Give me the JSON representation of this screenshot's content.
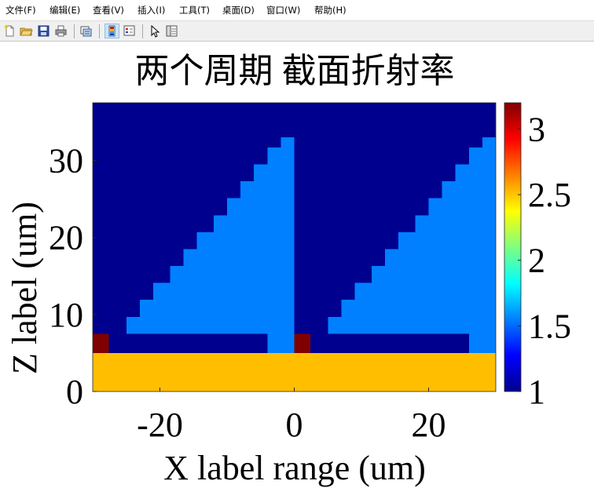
{
  "menu": [
    "文件(F)",
    "编辑(E)",
    "查看(V)",
    "插入(I)",
    "工具(T)",
    "桌面(D)",
    "窗口(W)",
    "帮助(H)"
  ],
  "toolbar_icons": [
    "new-file-icon",
    "open-folder-icon",
    "save-icon",
    "print-icon",
    "print-preview-icon",
    "colorbar-icon",
    "legend-icon",
    "pointer-icon",
    "property-editor-icon"
  ],
  "chart_data": {
    "type": "heatmap",
    "title": "两个周期  截面折射率",
    "xlabel": "X label range (um)",
    "ylabel": "Z label (um)",
    "xlim": [
      -30,
      30
    ],
    "ylim": [
      0,
      37.5
    ],
    "xticks": [
      -20,
      0,
      20
    ],
    "xtick_labels": [
      "-20",
      "0",
      "20"
    ],
    "yticks": [
      0,
      10,
      20,
      30
    ],
    "ytick_labels": [
      "0",
      "10",
      "20",
      "30"
    ],
    "colorbar": {
      "colormap": "jet",
      "clim": [
        1,
        3.2
      ],
      "ticks": [
        1,
        1.5,
        2,
        2.5,
        3
      ],
      "tick_labels": [
        "1",
        "1.5",
        "2",
        "2.5",
        "3"
      ]
    },
    "background_index": 1,
    "regions": [
      {
        "material": "substrate",
        "index": 2.6,
        "color": "#ffbf00",
        "x": [
          -30,
          30
        ],
        "z": [
          0,
          5
        ]
      },
      {
        "material": "high-index block",
        "index": 3.2,
        "color": "#800000",
        "x": [
          -30,
          -27.6
        ],
        "z": [
          5,
          7.5
        ]
      },
      {
        "material": "high-index block",
        "index": 3.2,
        "color": "#800000",
        "x": [
          0,
          2.4
        ],
        "z": [
          5,
          7.5
        ]
      },
      {
        "material": "grating post",
        "index": 1.45,
        "color": "#0080ff",
        "x": [
          -4,
          0
        ],
        "z": [
          5,
          7.5
        ]
      },
      {
        "material": "grating post",
        "index": 1.45,
        "color": "#0080ff",
        "x": [
          26,
          30
        ],
        "z": [
          5,
          7.5
        ]
      }
    ],
    "staircases": [
      {
        "material": "blazed grating",
        "index": 1.45,
        "color": "#0080ff",
        "steps": [
          {
            "z": [
              7.5,
              9.7
            ],
            "x": [
              -25,
              0
            ]
          },
          {
            "z": [
              9.7,
              11.9
            ],
            "x": [
              -23,
              0
            ]
          },
          {
            "z": [
              11.9,
              14.1
            ],
            "x": [
              -21,
              0
            ]
          },
          {
            "z": [
              14.1,
              16.3
            ],
            "x": [
              -18.5,
              0
            ]
          },
          {
            "z": [
              16.3,
              18.5
            ],
            "x": [
              -16.5,
              0
            ]
          },
          {
            "z": [
              18.5,
              20.7
            ],
            "x": [
              -14.5,
              0
            ]
          },
          {
            "z": [
              20.7,
              22.9
            ],
            "x": [
              -12,
              0
            ]
          },
          {
            "z": [
              22.9,
              25.1
            ],
            "x": [
              -10,
              0
            ]
          },
          {
            "z": [
              25.1,
              27.3
            ],
            "x": [
              -8,
              0
            ]
          },
          {
            "z": [
              27.3,
              29.5
            ],
            "x": [
              -6,
              0
            ]
          },
          {
            "z": [
              29.5,
              31.7
            ],
            "x": [
              -4,
              0
            ]
          },
          {
            "z": [
              31.7,
              33.0
            ],
            "x": [
              -2,
              0
            ]
          }
        ]
      },
      {
        "material": "blazed grating",
        "index": 1.45,
        "color": "#0080ff",
        "steps": [
          {
            "z": [
              7.5,
              9.7
            ],
            "x": [
              5,
              30
            ]
          },
          {
            "z": [
              9.7,
              11.9
            ],
            "x": [
              7,
              30
            ]
          },
          {
            "z": [
              11.9,
              14.1
            ],
            "x": [
              9,
              30
            ]
          },
          {
            "z": [
              14.1,
              16.3
            ],
            "x": [
              11.5,
              30
            ]
          },
          {
            "z": [
              16.3,
              18.5
            ],
            "x": [
              13.5,
              30
            ]
          },
          {
            "z": [
              18.5,
              20.7
            ],
            "x": [
              15.5,
              30
            ]
          },
          {
            "z": [
              20.7,
              22.9
            ],
            "x": [
              18,
              30
            ]
          },
          {
            "z": [
              22.9,
              25.1
            ],
            "x": [
              20,
              30
            ]
          },
          {
            "z": [
              25.1,
              27.3
            ],
            "x": [
              22,
              30
            ]
          },
          {
            "z": [
              27.3,
              29.5
            ],
            "x": [
              24,
              30
            ]
          },
          {
            "z": [
              29.5,
              31.7
            ],
            "x": [
              26,
              30
            ]
          },
          {
            "z": [
              31.7,
              33.0
            ],
            "x": [
              28,
              30
            ]
          }
        ]
      }
    ]
  }
}
